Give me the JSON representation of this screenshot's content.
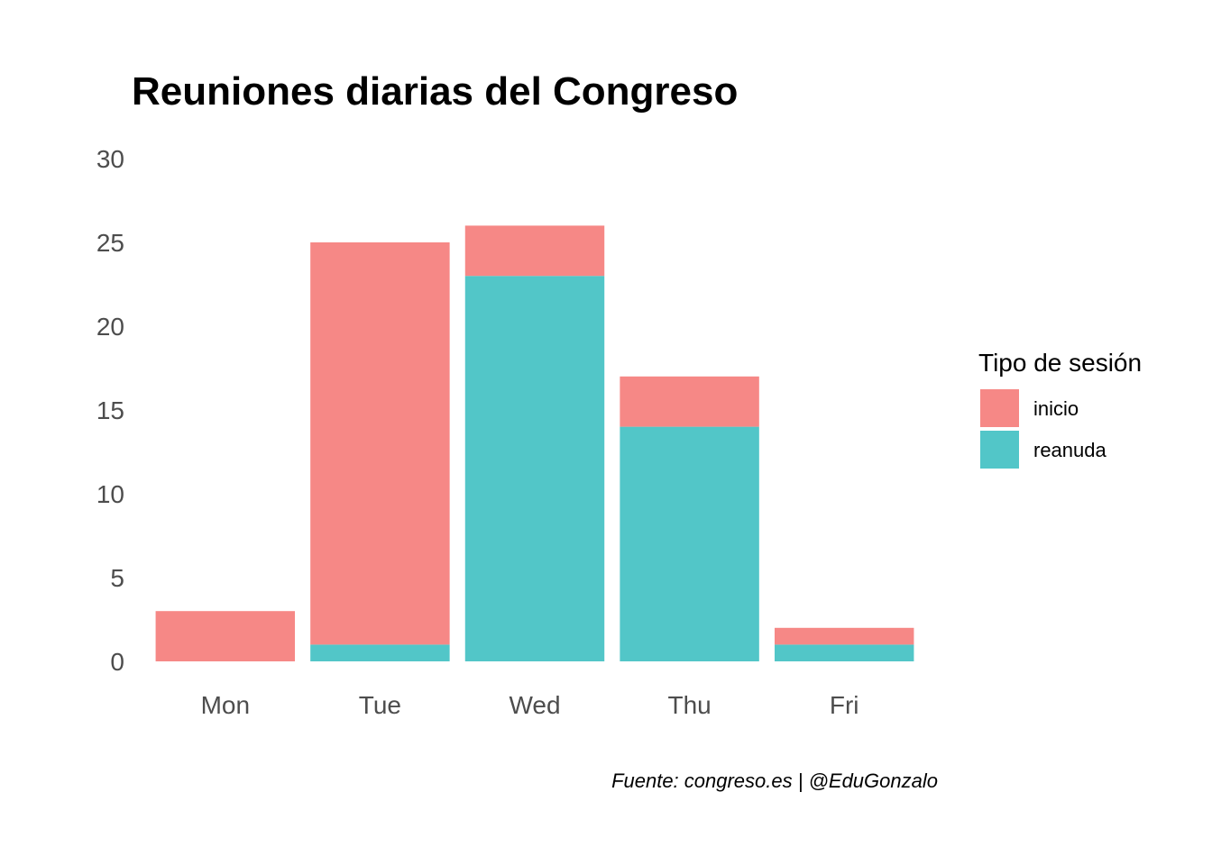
{
  "chart_data": {
    "type": "bar",
    "stacked": true,
    "title": "Reuniones diarias del Congreso",
    "caption": "Fuente: congreso.es | @EduGonzalo",
    "xlabel": "",
    "ylabel": "",
    "categories": [
      "Mon",
      "Tue",
      "Wed",
      "Thu",
      "Fri"
    ],
    "series": [
      {
        "name": "reanuda",
        "values": [
          0,
          1,
          23,
          14,
          1
        ],
        "color": "#52C6C8"
      },
      {
        "name": "inicio",
        "values": [
          3,
          24,
          3,
          3,
          1
        ],
        "color": "#F68886"
      }
    ],
    "ylim": [
      0,
      30
    ],
    "yticks": [
      "0",
      "5",
      "10",
      "15",
      "20",
      "25",
      "30"
    ],
    "grid": false,
    "legend": {
      "title": "Tipo de sesión",
      "position": "right",
      "items": [
        {
          "label": "inicio",
          "color": "#F68886"
        },
        {
          "label": "reanuda",
          "color": "#52C6C8"
        }
      ]
    }
  }
}
